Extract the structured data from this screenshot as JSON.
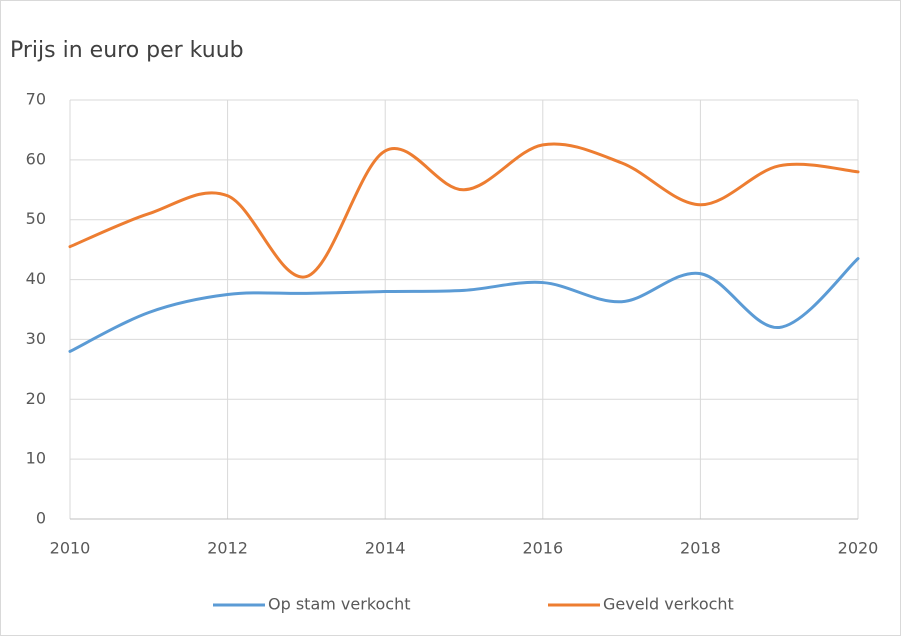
{
  "chart_data": {
    "type": "line",
    "title": "Prijs in euro per kuub",
    "x": [
      2010,
      2011,
      2012,
      2013,
      2014,
      2015,
      2016,
      2017,
      2018,
      2019,
      2020
    ],
    "series": [
      {
        "name": "Op stam verkocht",
        "color": "#5b9bd5",
        "values": [
          28,
          34.5,
          37.5,
          37.7,
          38,
          38.2,
          39.5,
          36.3,
          41,
          32,
          43.5
        ]
      },
      {
        "name": "Geveld verkocht",
        "color": "#ed7d31",
        "values": [
          45.5,
          51,
          54,
          40.5,
          61.5,
          55,
          62.5,
          59.5,
          52.5,
          59,
          58
        ]
      }
    ],
    "xlim": [
      2010,
      2020
    ],
    "xticks": [
      2010,
      2012,
      2014,
      2016,
      2018,
      2020
    ],
    "ylim": [
      0,
      70
    ],
    "yticks": [
      0,
      10,
      20,
      30,
      40,
      50,
      60,
      70
    ],
    "grid": true,
    "smooth": true,
    "legend": "bottom"
  }
}
